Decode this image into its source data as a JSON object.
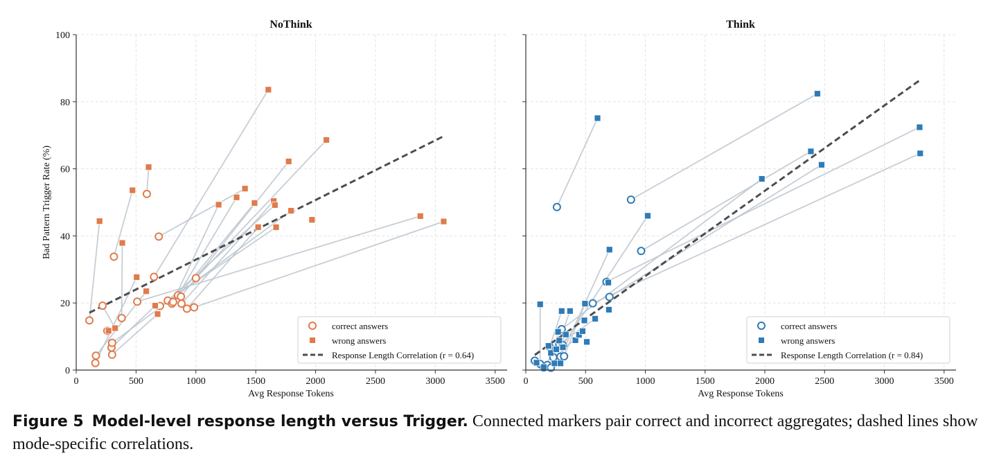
{
  "chart_data": [
    {
      "type": "scatter",
      "title": "NoThink",
      "xlabel": "Avg Response Tokens",
      "ylabel": "Bad Pattern Trigger Rate (%)",
      "xlim": [
        0,
        3600
      ],
      "ylim": [
        0,
        100
      ],
      "xticks": [
        "0",
        "500",
        "1000",
        "1500",
        "2000",
        "2500",
        "3000",
        "3500"
      ],
      "yticks": [
        "0",
        "20",
        "40",
        "60",
        "80",
        "100"
      ],
      "grid": true,
      "legend_position": "lower-right",
      "color": "#e07b4b",
      "series": [
        {
          "name": "correct answers",
          "marker": "circle",
          "points": [
            [
              110,
              14.8
            ],
            [
              160,
              2.1
            ],
            [
              165,
              4.3
            ],
            [
              220,
              19.2
            ],
            [
              260,
              11.7
            ],
            [
              295,
              6.7
            ],
            [
              300,
              4.6
            ],
            [
              300,
              8.1
            ],
            [
              315,
              33.8
            ],
            [
              380,
              15.5
            ],
            [
              510,
              20.4
            ],
            [
              590,
              52.5
            ],
            [
              650,
              27.8
            ],
            [
              690,
              39.8
            ],
            [
              700,
              19.1
            ],
            [
              765,
              20.7
            ],
            [
              800,
              19.8
            ],
            [
              810,
              20.3
            ],
            [
              850,
              22.3
            ],
            [
              875,
              21.9
            ],
            [
              880,
              19.8
            ],
            [
              925,
              18.3
            ],
            [
              985,
              18.7
            ],
            [
              1000,
              27.4
            ]
          ]
        },
        {
          "name": "wrong answers",
          "marker": "square",
          "points": [
            [
              195,
              44.4
            ],
            [
              270,
              11.7
            ],
            [
              325,
              12.5
            ],
            [
              385,
              37.9
            ],
            [
              470,
              53.6
            ],
            [
              505,
              27.7
            ],
            [
              585,
              23.5
            ],
            [
              605,
              60.5
            ],
            [
              660,
              19.2
            ],
            [
              680,
              16.7
            ],
            [
              1190,
              49.3
            ],
            [
              1340,
              51.5
            ],
            [
              1410,
              54.1
            ],
            [
              1490,
              49.8
            ],
            [
              1520,
              42.6
            ],
            [
              1605,
              83.6
            ],
            [
              1650,
              50.4
            ],
            [
              1660,
              49.2
            ],
            [
              1670,
              42.6
            ],
            [
              1775,
              62.2
            ],
            [
              1795,
              47.5
            ],
            [
              1970,
              44.8
            ],
            [
              2090,
              68.6
            ],
            [
              2875,
              45.9
            ],
            [
              3070,
              44.3
            ]
          ]
        }
      ],
      "pairs": [
        [
          [
            110,
            14.8
          ],
          [
            195,
            44.4
          ]
        ],
        [
          [
            590,
            52.5
          ],
          [
            605,
            60.5
          ]
        ],
        [
          [
            315,
            33.8
          ],
          [
            470,
            53.6
          ]
        ],
        [
          [
            380,
            15.5
          ],
          [
            385,
            37.9
          ]
        ],
        [
          [
            650,
            27.8
          ],
          [
            1605,
            83.6
          ]
        ],
        [
          [
            690,
            39.8
          ],
          [
            1410,
            54.1
          ]
        ],
        [
          [
            1000,
            27.4
          ],
          [
            2090,
            68.6
          ]
        ],
        [
          [
            875,
            21.9
          ],
          [
            1775,
            62.2
          ]
        ],
        [
          [
            800,
            19.8
          ],
          [
            1190,
            49.3
          ]
        ],
        [
          [
            850,
            22.3
          ],
          [
            1340,
            51.5
          ]
        ],
        [
          [
            810,
            20.3
          ],
          [
            1490,
            49.8
          ]
        ],
        [
          [
            880,
            19.8
          ],
          [
            1650,
            50.4
          ]
        ],
        [
          [
            765,
            20.7
          ],
          [
            1660,
            49.2
          ]
        ],
        [
          [
            925,
            18.3
          ],
          [
            1520,
            42.6
          ]
        ],
        [
          [
            700,
            19.1
          ],
          [
            1670,
            42.6
          ]
        ],
        [
          [
            985,
            18.7
          ],
          [
            3070,
            44.3
          ]
        ],
        [
          [
            510,
            20.4
          ],
          [
            2875,
            45.9
          ]
        ],
        [
          [
            160,
            2.1
          ],
          [
            505,
            27.7
          ]
        ],
        [
          [
            165,
            4.3
          ],
          [
            585,
            23.5
          ]
        ],
        [
          [
            295,
            6.7
          ],
          [
            660,
            19.2
          ]
        ],
        [
          [
            300,
            4.6
          ],
          [
            680,
            16.7
          ]
        ],
        [
          [
            300,
            8.1
          ],
          [
            1795,
            47.5
          ]
        ],
        [
          [
            260,
            11.7
          ],
          [
            270,
            11.7
          ]
        ],
        [
          [
            220,
            19.2
          ],
          [
            325,
            12.5
          ]
        ]
      ],
      "correlation": {
        "label": "Response Length Correlation (r = 0.64)",
        "r": 0.64,
        "x": [
          110,
          3080
        ],
        "y": [
          17.1,
          69.9
        ]
      }
    },
    {
      "type": "scatter",
      "title": "Think",
      "xlabel": "Avg Response Tokens",
      "ylabel": "",
      "xlim": [
        0,
        3600
      ],
      "ylim": [
        0,
        100
      ],
      "xticks": [
        "0",
        "500",
        "1000",
        "1500",
        "2000",
        "2500",
        "3000",
        "3500"
      ],
      "grid": true,
      "legend_position": "lower-right",
      "color": "#2f7bb6",
      "series": [
        {
          "name": "correct answers",
          "marker": "circle",
          "points": [
            [
              75,
              2.8
            ],
            [
              120,
              1.8
            ],
            [
              150,
              0.8
            ],
            [
              180,
              1.5
            ],
            [
              200,
              6.9
            ],
            [
              210,
              0.7
            ],
            [
              230,
              3.8
            ],
            [
              260,
              48.6
            ],
            [
              280,
              7.8
            ],
            [
              290,
              4.0
            ],
            [
              300,
              12.2
            ],
            [
              310,
              7.4
            ],
            [
              320,
              4.1
            ],
            [
              560,
              19.9
            ],
            [
              675,
              26.3
            ],
            [
              700,
              21.8
            ],
            [
              880,
              50.8
            ],
            [
              965,
              35.5
            ]
          ]
        },
        {
          "name": "wrong answers",
          "marker": "square",
          "points": [
            [
              90,
              2.2
            ],
            [
              120,
              19.6
            ],
            [
              150,
              0.9
            ],
            [
              190,
              7.2
            ],
            [
              210,
              5.1
            ],
            [
              240,
              2.0
            ],
            [
              255,
              6.2
            ],
            [
              270,
              11.4
            ],
            [
              280,
              8.8
            ],
            [
              290,
              2.0
            ],
            [
              300,
              17.6
            ],
            [
              310,
              6.8
            ],
            [
              335,
              10.6
            ],
            [
              370,
              17.6
            ],
            [
              415,
              8.9
            ],
            [
              445,
              10.5
            ],
            [
              475,
              11.6
            ],
            [
              490,
              14.8
            ],
            [
              495,
              19.8
            ],
            [
              510,
              8.4
            ],
            [
              580,
              15.3
            ],
            [
              600,
              75.1
            ],
            [
              690,
              26.1
            ],
            [
              695,
              18.0
            ],
            [
              700,
              35.9
            ],
            [
              1020,
              46.0
            ],
            [
              1975,
              57.0
            ],
            [
              2385,
              65.2
            ],
            [
              2440,
              82.4
            ],
            [
              2475,
              61.2
            ],
            [
              3295,
              72.4
            ],
            [
              3300,
              64.6
            ]
          ]
        }
      ],
      "pairs": [
        [
          [
            260,
            48.6
          ],
          [
            600,
            75.1
          ]
        ],
        [
          [
            880,
            50.8
          ],
          [
            2440,
            82.4
          ]
        ],
        [
          [
            965,
            35.5
          ],
          [
            2385,
            65.2
          ]
        ],
        [
          [
            675,
            26.3
          ],
          [
            3295,
            72.4
          ]
        ],
        [
          [
            700,
            21.8
          ],
          [
            2475,
            61.2
          ]
        ],
        [
          [
            560,
            19.9
          ],
          [
            3300,
            64.6
          ]
        ],
        [
          [
            300,
            12.2
          ],
          [
            1975,
            57.0
          ]
        ],
        [
          [
            310,
            7.4
          ],
          [
            1020,
            46.0
          ]
        ],
        [
          [
            290,
            4.0
          ],
          [
            700,
            35.9
          ]
        ],
        [
          [
            320,
            4.1
          ],
          [
            495,
            19.8
          ]
        ],
        [
          [
            280,
            7.8
          ],
          [
            580,
            15.3
          ]
        ],
        [
          [
            120,
            1.8
          ],
          [
            120,
            19.6
          ]
        ],
        [
          [
            200,
            6.9
          ],
          [
            300,
            17.6
          ]
        ],
        [
          [
            230,
            3.8
          ],
          [
            370,
            17.6
          ]
        ],
        [
          [
            150,
            0.8
          ],
          [
            335,
            10.6
          ]
        ],
        [
          [
            210,
            0.7
          ],
          [
            270,
            11.4
          ]
        ],
        [
          [
            180,
            1.5
          ],
          [
            445,
            10.5
          ]
        ]
      ],
      "correlation": {
        "label": "Response Length Correlation (r = 0.84)",
        "r": 0.84,
        "x": [
          75,
          3300
        ],
        "y": [
          4.5,
          86.5
        ]
      }
    }
  ],
  "caption": {
    "label": "Figure 5",
    "title": "Model-level response length versus Trigger.",
    "text": "Connected markers pair correct and incorrect aggregates; dashed lines show mode-specific correlations."
  }
}
